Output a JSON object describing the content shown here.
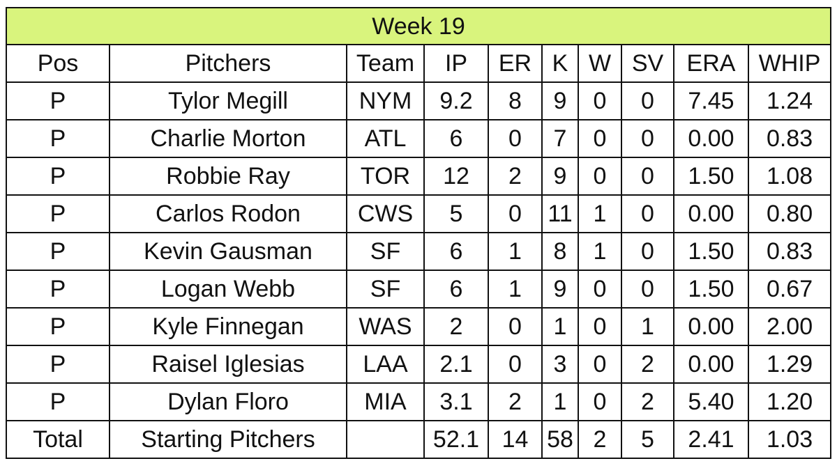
{
  "title": "Week 19",
  "columns": [
    "Pos",
    "Pitchers",
    "Team",
    "IP",
    "ER",
    "K",
    "W",
    "SV",
    "ERA",
    "WHIP"
  ],
  "rows": [
    [
      "P",
      "Tylor Megill",
      "NYM",
      "9.2",
      "8",
      "9",
      "0",
      "0",
      "7.45",
      "1.24"
    ],
    [
      "P",
      "Charlie Morton",
      "ATL",
      "6",
      "0",
      "7",
      "0",
      "0",
      "0.00",
      "0.83"
    ],
    [
      "P",
      "Robbie Ray",
      "TOR",
      "12",
      "2",
      "9",
      "0",
      "0",
      "1.50",
      "1.08"
    ],
    [
      "P",
      "Carlos Rodon",
      "CWS",
      "5",
      "0",
      "11",
      "1",
      "0",
      "0.00",
      "0.80"
    ],
    [
      "P",
      "Kevin Gausman",
      "SF",
      "6",
      "1",
      "8",
      "1",
      "0",
      "1.50",
      "0.83"
    ],
    [
      "P",
      "Logan Webb",
      "SF",
      "6",
      "1",
      "9",
      "0",
      "0",
      "1.50",
      "0.67"
    ],
    [
      "P",
      "Kyle Finnegan",
      "WAS",
      "2",
      "0",
      "1",
      "0",
      "1",
      "0.00",
      "2.00"
    ],
    [
      "P",
      "Raisel Iglesias",
      "LAA",
      "2.1",
      "0",
      "3",
      "0",
      "2",
      "0.00",
      "1.29"
    ],
    [
      "P",
      "Dylan Floro",
      "MIA",
      "3.1",
      "2",
      "1",
      "0",
      "2",
      "5.40",
      "1.20"
    ]
  ],
  "total": [
    "Total",
    "Starting Pitchers",
    "",
    "52.1",
    "14",
    "58",
    "2",
    "5",
    "2.41",
    "1.03"
  ],
  "colors": {
    "header_fill": "#d9f47d",
    "border": "#111111"
  }
}
